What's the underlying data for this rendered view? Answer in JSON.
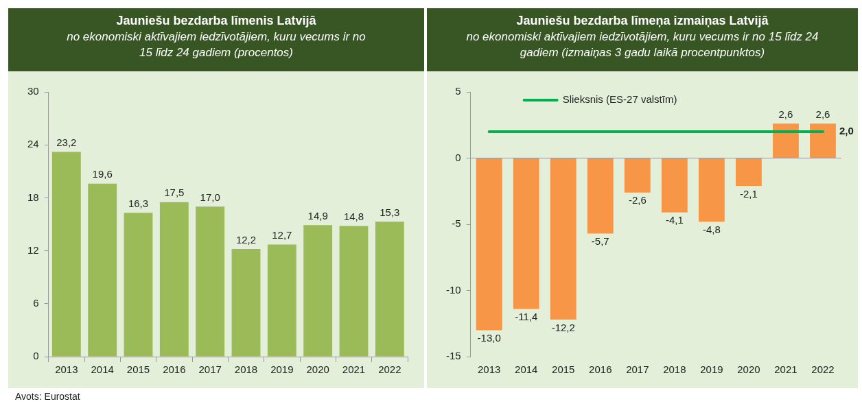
{
  "chart_data": [
    {
      "type": "bar",
      "title": "Jauniešu bezdarba līmenis Latvijā",
      "subtitle": "no ekonomiski aktīvajiem iedzīvotājiem, kuru vecums ir no 15 līdz 24 gadiem (procentos)",
      "categories": [
        "2013",
        "2014",
        "2015",
        "2016",
        "2017",
        "2018",
        "2019",
        "2020",
        "2021",
        "2022"
      ],
      "values": [
        23.2,
        19.6,
        16.3,
        17.5,
        17.0,
        12.2,
        12.7,
        14.9,
        14.8,
        15.3
      ],
      "value_labels": [
        "23,2",
        "19,6",
        "16,3",
        "17,5",
        "17,0",
        "12,2",
        "12,7",
        "14,9",
        "14,8",
        "15,3"
      ],
      "color": "#9bbb59",
      "ylim": [
        0,
        30
      ],
      "yticks": [
        0,
        6,
        12,
        18,
        24,
        30
      ],
      "annotations": [
        "Avots: Eurostat"
      ]
    },
    {
      "type": "bar",
      "title": "Jauniešu bezdarba līmeņa izmaiņas Latvijā",
      "subtitle": "no ekonomiski aktīvajiem iedzīvotājiem, kuru vecums ir no 15 līdz 24 gadiem (izmaiņas 3 gadu laikā procentpunktos)",
      "categories": [
        "2013",
        "2014",
        "2015",
        "2016",
        "2017",
        "2018",
        "2019",
        "2020",
        "2021",
        "2022"
      ],
      "values": [
        -13.0,
        -11.4,
        -12.2,
        -5.7,
        -2.6,
        -4.1,
        -4.8,
        -2.1,
        2.6,
        2.6
      ],
      "value_labels": [
        "-13,0",
        "-11,4",
        "-12,2",
        "-5,7",
        "-2,6",
        "-4,1",
        "-4,8",
        "-2,1",
        "2,6",
        "2,6"
      ],
      "color": "#f79646",
      "ylim": [
        -15,
        5
      ],
      "yticks": [
        -15,
        -10,
        -5,
        0,
        5
      ],
      "ref_lines": [
        {
          "axis": "y",
          "value": 2.0,
          "label": "Slieksnis (ES-27 valstīm)",
          "color": "#00b050"
        }
      ],
      "annotations": [
        {
          "text": "2,0",
          "x": "2022",
          "y": 2.0
        }
      ]
    }
  ]
}
